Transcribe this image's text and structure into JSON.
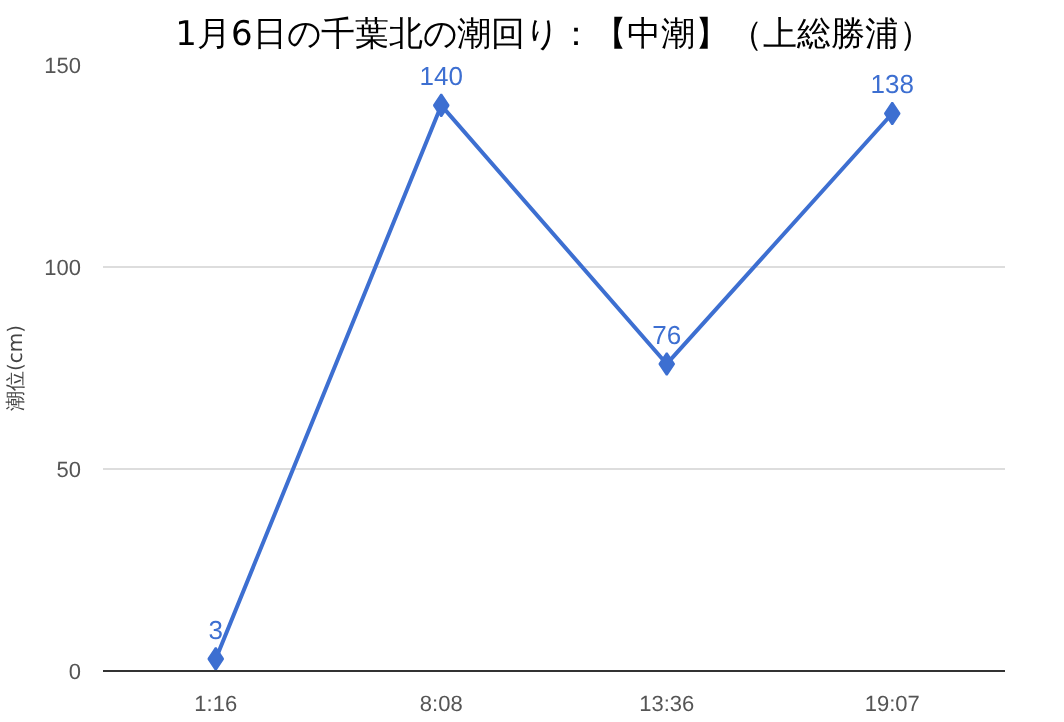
{
  "chart_data": {
    "type": "line",
    "title": "1月6日の千葉北の潮回り：【中潮】（上総勝浦）",
    "ylabel": "潮位(cm)",
    "categories": [
      "1:16",
      "8:08",
      "13:36",
      "19:07"
    ],
    "series": [
      {
        "color": "#3d6fd1",
        "values": [
          3,
          140,
          76,
          138
        ]
      }
    ],
    "ylim": [
      0,
      150
    ],
    "yticks": [
      0,
      50,
      100,
      150
    ],
    "grid": "y",
    "marker": "diamond",
    "data_labels": true
  }
}
